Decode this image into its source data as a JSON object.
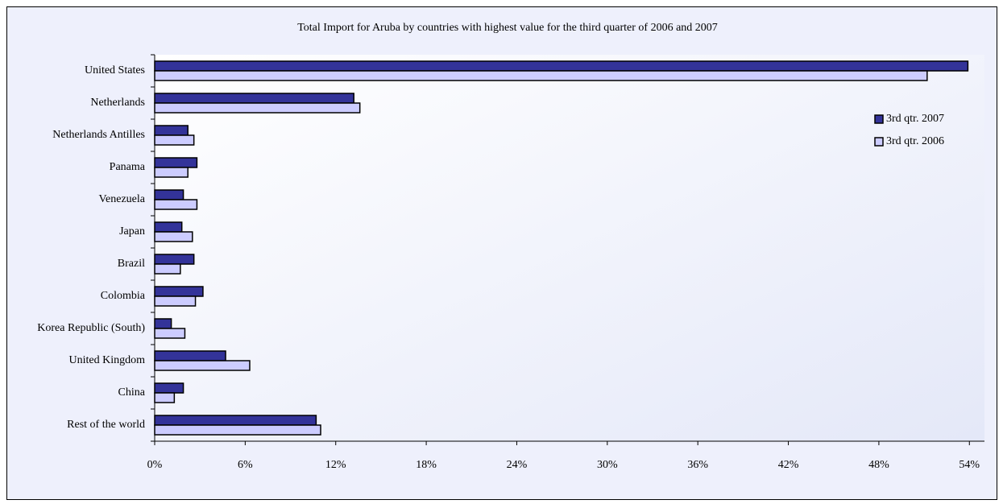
{
  "chart_data": {
    "type": "hbar",
    "title": "Total Import for Aruba by countries with highest value for the third quarter of 2006 and 2007",
    "categories": [
      "United States",
      "Netherlands",
      "Netherlands Antilles",
      "Panama",
      "Venezuela",
      "Japan",
      "Brazil",
      "Colombia",
      "Korea Republic (South)",
      "United Kingdom",
      "China",
      "Rest of the world"
    ],
    "series": [
      {
        "name": "3rd qtr. 2007",
        "color": "#333399",
        "values": [
          53.9,
          13.2,
          2.2,
          2.8,
          1.9,
          1.8,
          2.6,
          3.2,
          1.1,
          4.7,
          1.9,
          10.7
        ]
      },
      {
        "name": "3rd qtr. 2006",
        "color": "#ccccff",
        "values": [
          51.2,
          13.6,
          2.6,
          2.2,
          2.8,
          2.5,
          1.7,
          2.7,
          2.0,
          6.3,
          1.3,
          11.0
        ]
      }
    ],
    "xlim": [
      0,
      55
    ],
    "xticks": [
      {
        "value": 0,
        "label": "0%"
      },
      {
        "value": 6,
        "label": "6%"
      },
      {
        "value": 12,
        "label": "12%"
      },
      {
        "value": 18,
        "label": "18%"
      },
      {
        "value": 24,
        "label": "24%"
      },
      {
        "value": 30,
        "label": "30%"
      },
      {
        "value": 36,
        "label": "36%"
      },
      {
        "value": 42,
        "label": "42%"
      },
      {
        "value": 48,
        "label": "48%"
      },
      {
        "value": 54,
        "label": "54%"
      }
    ],
    "legend": "right"
  }
}
